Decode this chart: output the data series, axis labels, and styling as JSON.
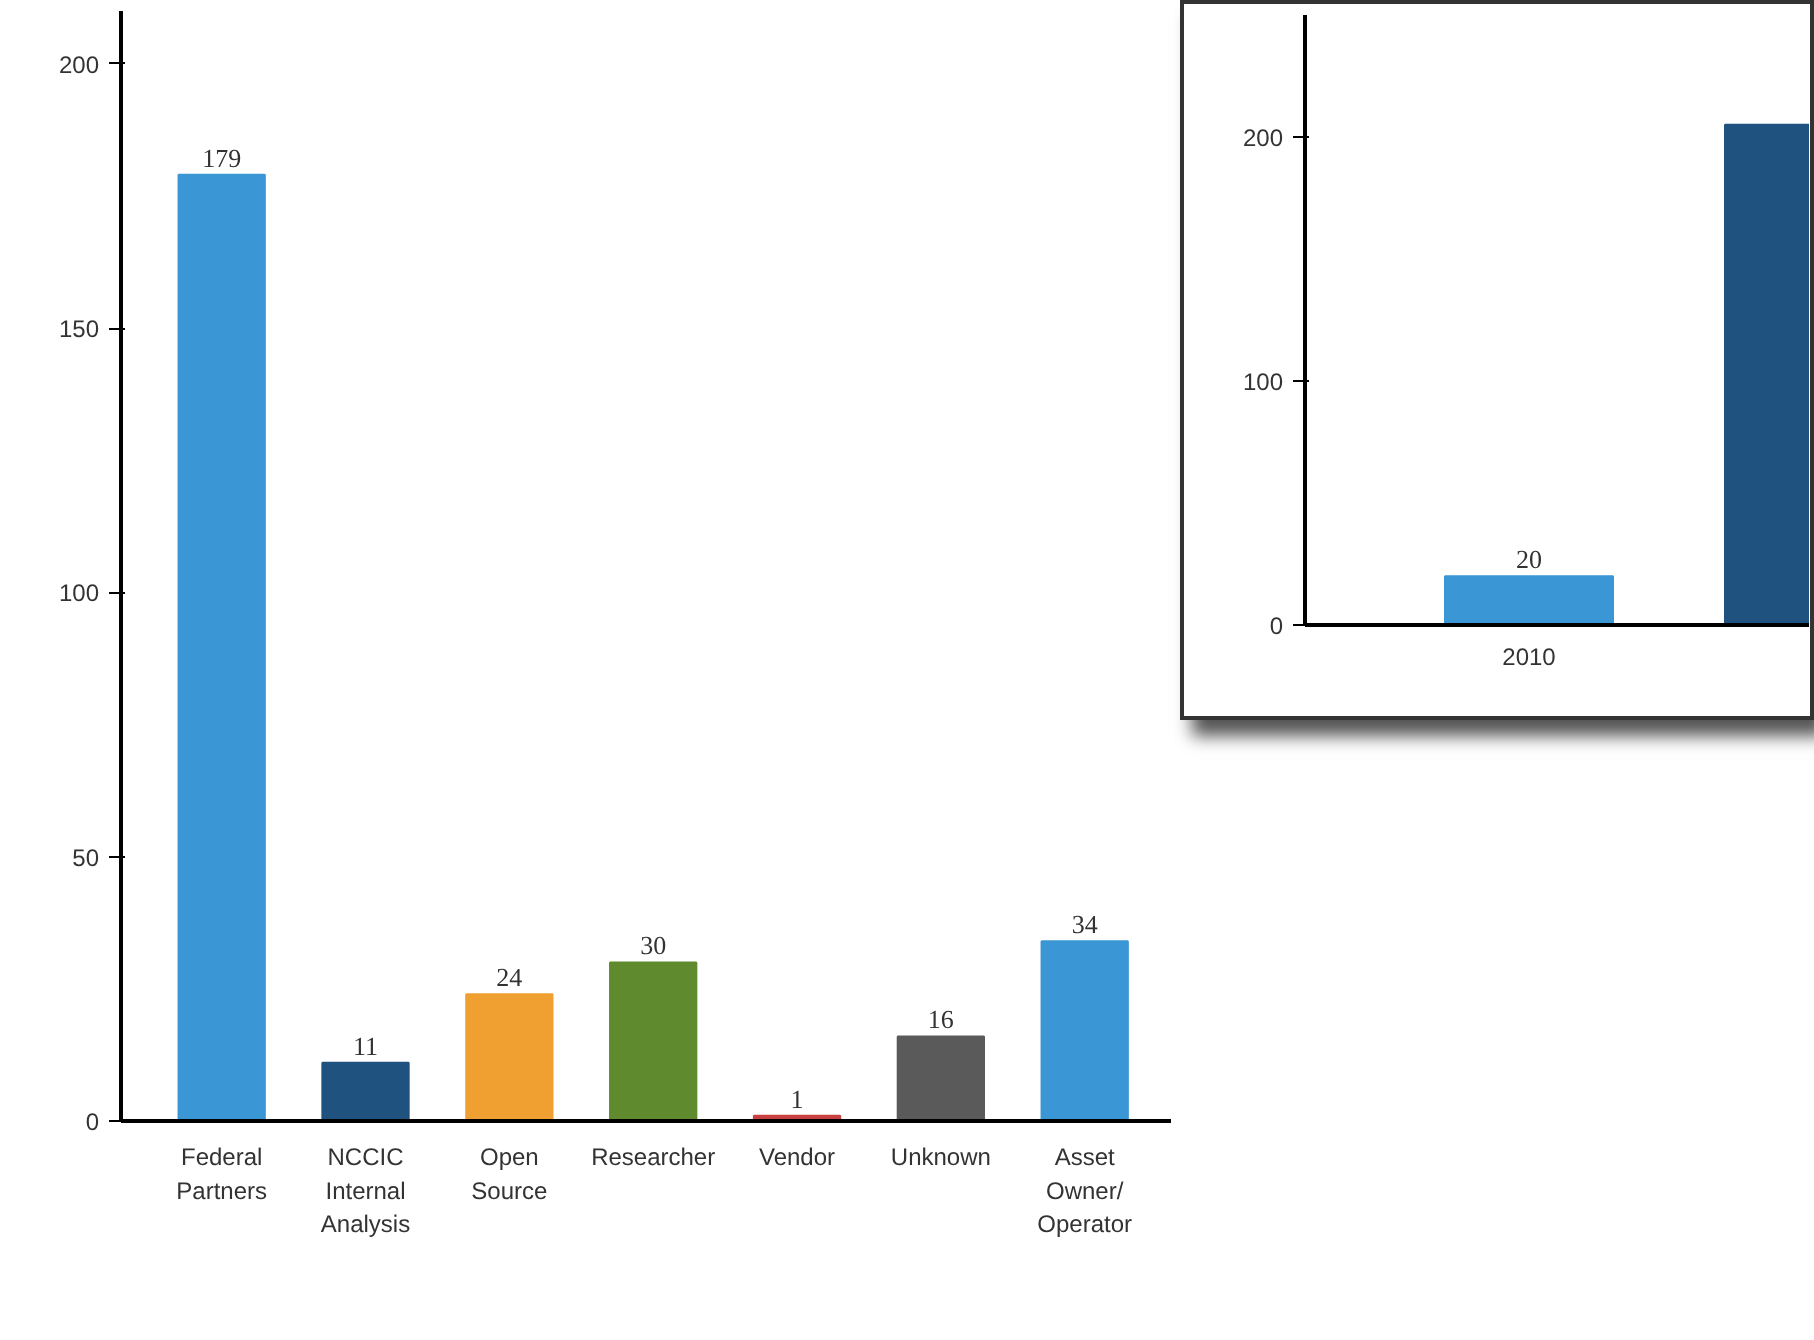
{
  "chart_data": [
    {
      "type": "bar",
      "categories": [
        "Federal\nPartners",
        "NCCIC\nInternal\nAnalysis",
        "Open\nSource",
        "Researcher",
        "Vendor",
        "Unknown",
        "Asset\nOwner/\nOperator"
      ],
      "values": [
        179,
        11,
        24,
        30,
        1,
        16,
        34
      ],
      "colors": [
        "#3a96d4",
        "#1f527f",
        "#f0a030",
        "#5f8a2e",
        "#c84040",
        "#5a5a5a",
        "#3a96d4"
      ],
      "ylim": [
        0,
        210
      ],
      "yticks": [
        0,
        50,
        100,
        150,
        200
      ],
      "grid": false,
      "data_labels": true
    },
    {
      "type": "bar",
      "categories": [
        "2010",
        null
      ],
      "values": [
        20,
        205
      ],
      "value_labels": [
        "20",
        null
      ],
      "colors": [
        "#3a96d4",
        "#1f527f"
      ],
      "ylim": [
        0,
        250
      ],
      "yticks": [
        0,
        100,
        200
      ],
      "grid": false
    }
  ]
}
